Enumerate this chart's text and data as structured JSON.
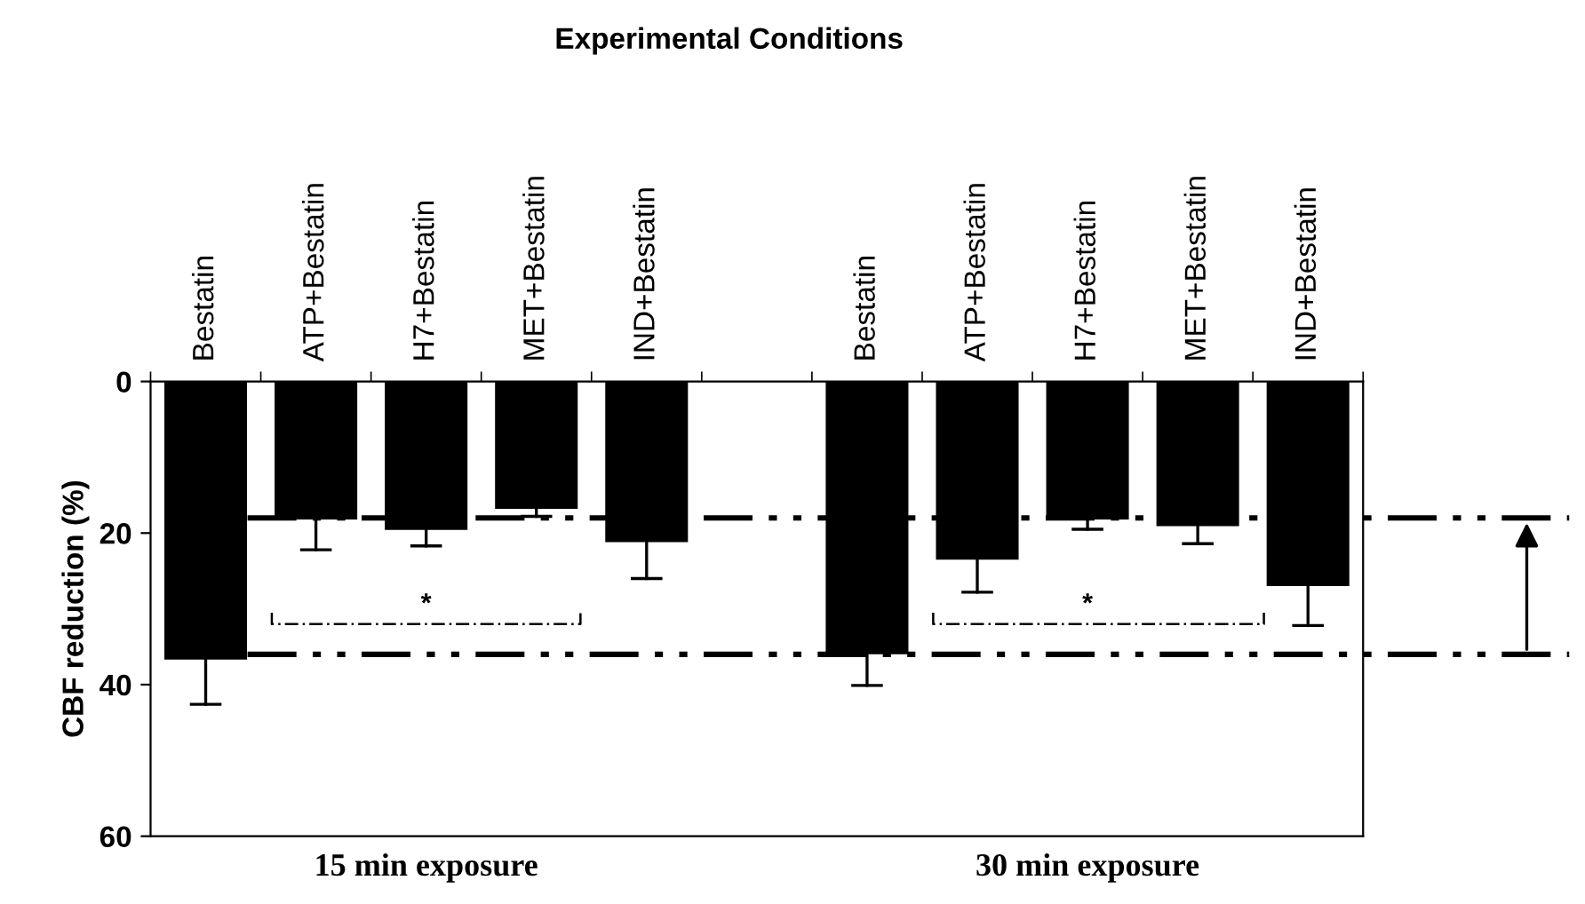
{
  "chart_data": {
    "type": "bar",
    "title": "Experimental Conditions",
    "ylabel": "CBF reduction (%)",
    "categories": [
      "Bestatin",
      "ATP+Bestatin",
      "H7+Bestatin",
      "MET+Bestatin",
      "IND+Bestatin",
      null,
      "Bestatin",
      "ATP+Bestatin",
      "H7+Bestatin",
      "MET+Bestatin",
      "IND+Bestatin"
    ],
    "values": [
      36.7,
      18.2,
      19.6,
      16.8,
      21.2,
      null,
      36.0,
      23.5,
      18.2,
      19.1,
      27.0
    ],
    "errors": [
      [
        36.7,
        42.6
      ],
      [
        18.2,
        22.2
      ],
      [
        19.6,
        21.7
      ],
      [
        16.8,
        17.8
      ],
      [
        21.2,
        26.0
      ],
      null,
      [
        36.0,
        40.1
      ],
      [
        23.5,
        27.8
      ],
      [
        18.2,
        19.5
      ],
      [
        19.1,
        21.4
      ],
      [
        27.0,
        32.2
      ]
    ],
    "color": "#000000",
    "ylim": [
      60,
      0
    ],
    "yticks": [
      0,
      20,
      40,
      60
    ],
    "ref_lines": [
      {
        "axis": "y",
        "value": 18,
        "color": "#000000",
        "line_style": "dashed"
      },
      {
        "axis": "y",
        "value": 36,
        "color": "#000000",
        "line_style": "dashed"
      }
    ],
    "annotations": [
      "15 min exposure",
      "30 min exposure",
      "*",
      "*"
    ],
    "grid": false
  }
}
